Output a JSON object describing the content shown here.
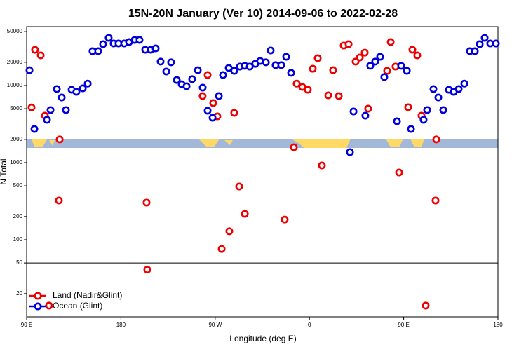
{
  "chart_data": {
    "type": "scatter",
    "title": "15N-20N January (Ver 10)   2014-09-06 to 2022-02-28",
    "x_label": "Longitude (deg E)",
    "y_label": "N Total",
    "log_y": true,
    "legend": "bottomleft",
    "reference_line": 50,
    "xlim": [
      90,
      540
    ],
    "ylim": [
      10,
      58000
    ],
    "xticks": [
      {
        "value": 90,
        "label": "90 E"
      },
      180,
      {
        "value": 270,
        "label": "90 W"
      },
      {
        "value": 360,
        "label": "0"
      },
      {
        "value": 450,
        "label": "90 E"
      },
      {
        "value": 540,
        "label": "180"
      }
    ],
    "yticks": [
      20,
      50,
      100,
      200,
      500,
      1000,
      2000,
      5000,
      10000,
      20000,
      50000
    ],
    "series": [
      {
        "name": "Land (Nadir&Glint)",
        "color": "#ee0000",
        "x": [
          94.7,
          98.0,
          103.4,
          107.4,
          111.4,
          121.5,
          120.8,
          204.5,
          205.2,
          258,
          262.8,
          268.1,
          272.1,
          276.2,
          283.5,
          288.2,
          292.9,
          298.3,
          336.4,
          345.1,
          347.8,
          353.2,
          358.5,
          363.2,
          367.9,
          371.9,
          378,
          382.6,
          388,
          392.7,
          397.4,
          404.1,
          408.1,
          412.8,
          416.1,
          434.2,
          437.6,
          442.2,
          445.6,
          454.3,
          458.3,
          463,
          467,
          471,
          481.1,
          480.4
        ],
        "values": [
          5200,
          29000,
          24600,
          4060,
          14,
          2000,
          323,
          303,
          41,
          7300,
          13700,
          5930,
          3980,
          76,
          129,
          4420,
          491,
          217,
          183,
          1580,
          10600,
          9600,
          8820,
          16500,
          22600,
          920,
          7460,
          15800,
          7300,
          33000,
          34400,
          20400,
          23100,
          26700,
          5010,
          15500,
          36600,
          17600,
          746,
          5230,
          29100,
          24600,
          4060,
          14,
          2000,
          323
        ]
      },
      {
        "name": "Ocean (Glint)",
        "color": "#0000dd",
        "x": [
          92.7,
          97.4,
          109.4,
          112.8,
          118.8,
          123.5,
          127.5,
          132.9,
          137.5,
          143.6,
          148.3,
          152.9,
          158.3,
          163,
          168.3,
          173,
          177.7,
          183.1,
          187.8,
          193.1,
          197.8,
          203.2,
          208.5,
          213.2,
          217.9,
          223.3,
          227.9,
          233.3,
          238,
          242.7,
          248,
          253.4,
          258.1,
          262.8,
          267.5,
          273.5,
          277.5,
          282.9,
          288.2,
          293.6,
          298.3,
          303,
          308.3,
          313,
          318.4,
          323,
          327.7,
          333.1,
          337.8,
          342.5,
          398.7,
          402.1,
          413.4,
          418.1,
          422.8,
          427.5,
          431.5,
          443.6,
          447.6,
          453,
          457,
          469,
          472.4,
          478.4,
          483.1,
          487.8,
          493.1,
          497.8,
          502.5,
          507.9,
          513.2,
          517.9,
          522.6,
          527.3,
          532.6,
          538
        ],
        "values": [
          15800,
          2730,
          3590,
          4810,
          9010,
          7000,
          4810,
          8820,
          8280,
          9200,
          10600,
          27900,
          27900,
          34400,
          41500,
          35100,
          35100,
          35100,
          36600,
          39000,
          39000,
          29100,
          29100,
          30300,
          20400,
          15200,
          20000,
          11800,
          10400,
          9800,
          12100,
          15800,
          9400,
          4710,
          3820,
          7300,
          13700,
          16900,
          15500,
          17600,
          18000,
          17600,
          19100,
          20800,
          20000,
          28500,
          18400,
          18400,
          23600,
          14600,
          1370,
          4610,
          4060,
          18000,
          20400,
          23600,
          12900,
          3440,
          18000,
          15500,
          2730,
          3590,
          4810,
          9010,
          7000,
          4810,
          8820,
          8280,
          9010,
          10600,
          27900,
          27900,
          34400,
          41500,
          35100,
          35100
        ]
      }
    ]
  }
}
